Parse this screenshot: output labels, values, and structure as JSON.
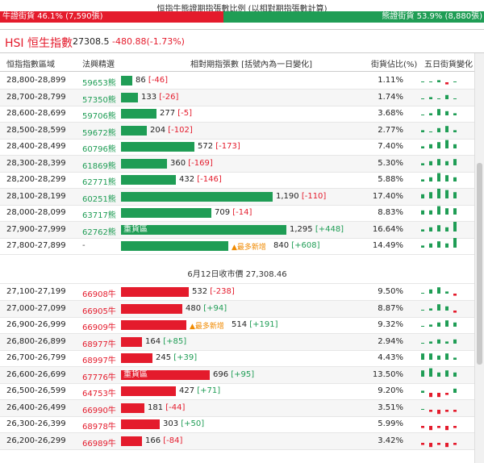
{
  "ratio": {
    "title": "恒指牛熊證期指張數比例 (以相對期指張數計算)",
    "bull_label": "牛證街貨 46.1% (7,590張)",
    "bear_label": "熊證街貨 53.9% (8,880張)",
    "bull_pct": 46.1,
    "bear_pct": 53.9
  },
  "index": {
    "name": "HSI 恒生指數",
    "value": "27308.5",
    "change": "-480.88(-1.73%)"
  },
  "headers": {
    "range": "恒指指數區域",
    "code": "法興精選",
    "futures": "相對期指張數 [括號內為一日變化]",
    "share": "街貨佔比(%)",
    "trend": "五日街貨變化"
  },
  "separator": "6月12日收市價 27,308.46",
  "colors": {
    "bull": "#e41b2c",
    "bear": "#1f9d55"
  },
  "bear_rows": [
    {
      "range": "28,800-28,899",
      "code": "59653熊",
      "num": "86",
      "chg": "[-46]",
      "sign": "neg",
      "pct": "1.11%",
      "amount": 86,
      "tag": "",
      "spark": [
        0,
        0,
        1,
        -1,
        0
      ]
    },
    {
      "range": "28,700-28,799",
      "code": "57350熊",
      "num": "133",
      "chg": "[-26]",
      "sign": "neg",
      "pct": "1.74%",
      "amount": 133,
      "tag": "",
      "spark": [
        0,
        1,
        0,
        2,
        0
      ]
    },
    {
      "range": "28,600-28,699",
      "code": "59706熊",
      "num": "277",
      "chg": "[-5]",
      "sign": "neg",
      "pct": "3.68%",
      "amount": 277,
      "tag": "",
      "spark": [
        0,
        1,
        3,
        2,
        1
      ]
    },
    {
      "range": "28,500-28,599",
      "code": "59672熊",
      "num": "204",
      "chg": "[-102]",
      "sign": "neg",
      "pct": "2.77%",
      "amount": 204,
      "tag": "",
      "spark": [
        1,
        0,
        2,
        3,
        1
      ]
    },
    {
      "range": "28,400-28,499",
      "code": "60796熊",
      "num": "572",
      "chg": "[-173]",
      "sign": "neg",
      "pct": "7.40%",
      "amount": 572,
      "tag": "",
      "spark": [
        1,
        2,
        3,
        4,
        2
      ]
    },
    {
      "range": "28,300-28,399",
      "code": "61869熊",
      "num": "360",
      "chg": "[-169]",
      "sign": "neg",
      "pct": "5.30%",
      "amount": 360,
      "tag": "",
      "spark": [
        1,
        2,
        3,
        2,
        3
      ]
    },
    {
      "range": "28,200-28,299",
      "code": "62771熊",
      "num": "432",
      "chg": "[-146]",
      "sign": "neg",
      "pct": "5.88%",
      "amount": 432,
      "tag": "",
      "spark": [
        1,
        2,
        4,
        3,
        2
      ]
    },
    {
      "range": "28,100-28,199",
      "code": "60251熊",
      "num": "1,190",
      "chg": "[-110]",
      "sign": "neg",
      "pct": "17.40%",
      "amount": 1190,
      "tag": "",
      "spark": [
        2,
        3,
        5,
        4,
        3
      ]
    },
    {
      "range": "28,000-28,099",
      "code": "63717熊",
      "num": "709",
      "chg": "[-14]",
      "sign": "neg",
      "pct": "8.83%",
      "amount": 709,
      "tag": "",
      "spark": [
        2,
        2,
        4,
        3,
        3
      ]
    },
    {
      "range": "27,900-27,999",
      "code": "62762熊",
      "num": "1,295",
      "chg": "[+448]",
      "sign": "pos",
      "pct": "16.64%",
      "amount": 1295,
      "tag": "重貨區",
      "spark": [
        1,
        2,
        3,
        2,
        5
      ]
    },
    {
      "range": "27,800-27,899",
      "code": "-",
      "num": "840",
      "chg": "[+608]",
      "sign": "pos",
      "pct": "14.49%",
      "amount": 840,
      "tag": "▲最多新增",
      "spark": [
        1,
        2,
        3,
        2,
        5
      ]
    }
  ],
  "bull_rows": [
    {
      "range": "27,100-27,199",
      "code": "66908牛",
      "num": "532",
      "chg": "[-238]",
      "sign": "neg",
      "pct": "9.50%",
      "amount": 532,
      "tag": "",
      "spark": [
        0,
        2,
        3,
        1,
        -1
      ]
    },
    {
      "range": "27,000-27,099",
      "code": "66905牛",
      "num": "480",
      "chg": "[+94]",
      "sign": "pos",
      "pct": "8.87%",
      "amount": 480,
      "tag": "",
      "spark": [
        0,
        1,
        3,
        2,
        -1
      ]
    },
    {
      "range": "26,900-26,999",
      "code": "66909牛",
      "num": "514",
      "chg": "[+191]",
      "sign": "pos",
      "pct": "9.32%",
      "amount": 514,
      "tag": "▲最多新增",
      "spark": [
        0,
        1,
        2,
        3,
        2
      ]
    },
    {
      "range": "26,800-26,899",
      "code": "68977牛",
      "num": "164",
      "chg": "[+85]",
      "sign": "pos",
      "pct": "2.94%",
      "amount": 164,
      "tag": "",
      "spark": [
        0,
        1,
        2,
        1,
        2
      ]
    },
    {
      "range": "26,700-26,799",
      "code": "68997牛",
      "num": "245",
      "chg": "[+39]",
      "sign": "pos",
      "pct": "4.43%",
      "amount": 245,
      "tag": "",
      "spark": [
        3,
        3,
        2,
        3,
        1
      ]
    },
    {
      "range": "26,600-26,699",
      "code": "67776牛",
      "num": "696",
      "chg": "[+95]",
      "sign": "pos",
      "pct": "13.50%",
      "amount": 696,
      "tag": "重貨區",
      "spark": [
        3,
        4,
        2,
        3,
        2
      ]
    },
    {
      "range": "26,500-26,599",
      "code": "64753牛",
      "num": "427",
      "chg": "[+71]",
      "sign": "pos",
      "pct": "9.20%",
      "amount": 427,
      "tag": "",
      "spark": [
        1,
        -2,
        -2,
        -1,
        2
      ]
    },
    {
      "range": "26,400-26,499",
      "code": "66990牛",
      "num": "181",
      "chg": "[-44]",
      "sign": "neg",
      "pct": "3.51%",
      "amount": 181,
      "tag": "",
      "spark": [
        0,
        -1,
        -2,
        -1,
        -1
      ]
    },
    {
      "range": "26,300-26,399",
      "code": "68978牛",
      "num": "303",
      "chg": "[+50]",
      "sign": "pos",
      "pct": "5.99%",
      "amount": 303,
      "tag": "",
      "spark": [
        -1,
        -2,
        -1,
        -2,
        -1
      ]
    },
    {
      "range": "26,200-26,299",
      "code": "66989牛",
      "num": "166",
      "chg": "[-84]",
      "sign": "neg",
      "pct": "3.42%",
      "amount": 166,
      "tag": "",
      "spark": [
        -1,
        -2,
        -1,
        -2,
        -1
      ]
    }
  ]
}
